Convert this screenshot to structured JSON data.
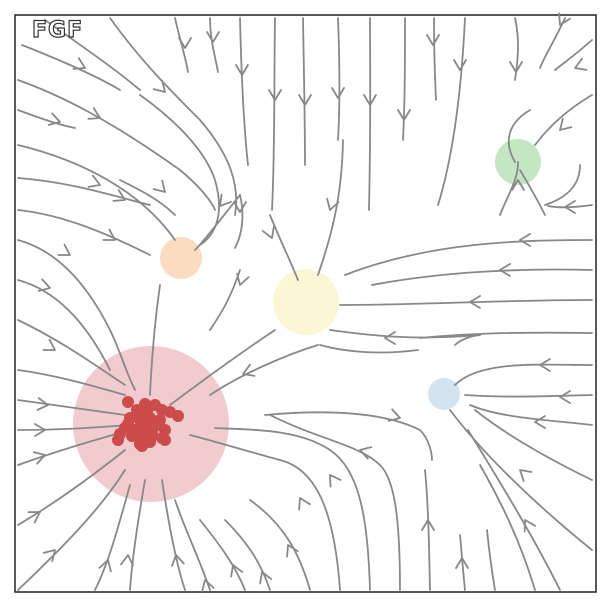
{
  "figure": {
    "title": "FGF"
  },
  "colors": {
    "stream": "#888888",
    "frame": "#222222",
    "attractor_main": "#e8a9ac",
    "cluster_dot": "#cc4b4b",
    "orange": "#fbd3b0",
    "yellow": "#fdf5cf",
    "blue": "#cfe0ee",
    "green": "#bfe3bd"
  },
  "attractors": [
    {
      "name": "main-attractor",
      "color": "#e8a9ac"
    },
    {
      "name": "orange-attractor",
      "color": "#fbd3b0"
    },
    {
      "name": "yellow-attractor",
      "color": "#fdf5cf"
    },
    {
      "name": "blue-attractor",
      "color": "#cfe0ee"
    },
    {
      "name": "green-attractor",
      "color": "#bfe3bd"
    }
  ]
}
